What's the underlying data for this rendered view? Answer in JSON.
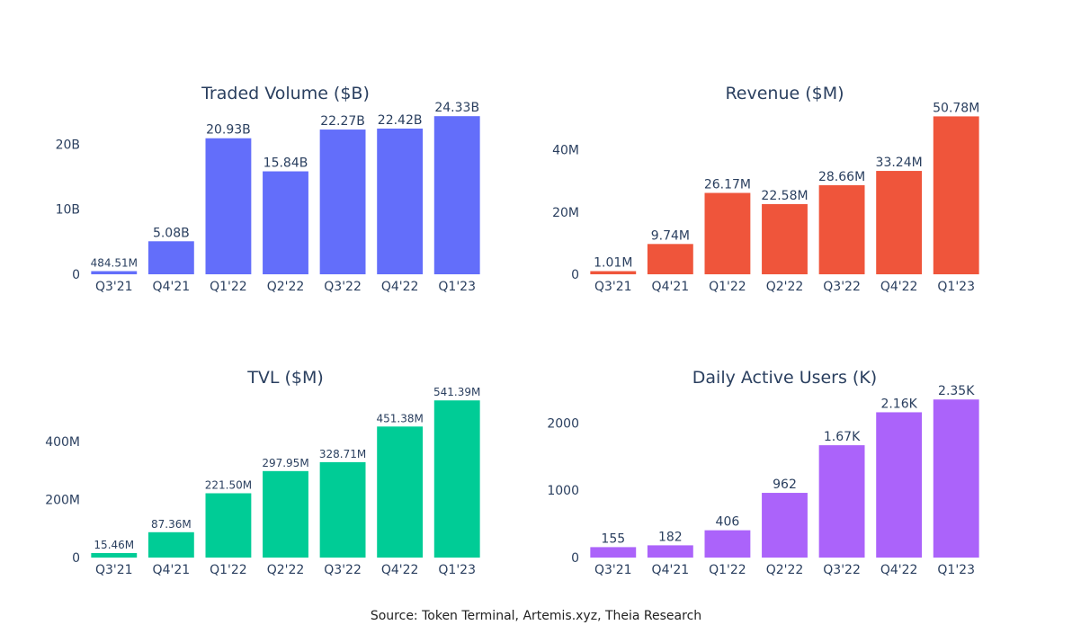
{
  "source_note": "Source: Token Terminal, Artemis.xyz, Theia Research",
  "chart_data": [
    {
      "type": "bar",
      "title": "Traded Volume ($B)",
      "categories": [
        "Q3'21",
        "Q4'21",
        "Q1'22",
        "Q2'22",
        "Q3'22",
        "Q4'22",
        "Q1'23"
      ],
      "values": [
        0.48451,
        5.08,
        20.93,
        15.84,
        22.27,
        22.42,
        24.33
      ],
      "labels": [
        "484.51M",
        "5.08B",
        "20.93B",
        "15.84B",
        "22.27B",
        "22.42B",
        "24.33B"
      ],
      "ylim": [
        0,
        25.6
      ],
      "yticks": [
        0,
        10,
        20
      ],
      "ytick_labels": [
        "0",
        "10B",
        "20B"
      ],
      "color": "#636efa",
      "xlabel": "",
      "ylabel": ""
    },
    {
      "type": "bar",
      "title": "Revenue ($M)",
      "categories": [
        "Q3'21",
        "Q4'21",
        "Q1'22",
        "Q2'22",
        "Q3'22",
        "Q4'22",
        "Q1'23"
      ],
      "values": [
        1.01,
        9.74,
        26.17,
        22.58,
        28.66,
        33.24,
        50.78
      ],
      "labels": [
        "1.01M",
        "9.74M",
        "26.17M",
        "22.58M",
        "28.66M",
        "33.24M",
        "50.78M"
      ],
      "ylim": [
        0,
        53.5
      ],
      "yticks": [
        0,
        20,
        40
      ],
      "ytick_labels": [
        "0",
        "20M",
        "40M"
      ],
      "color": "#ef553b",
      "xlabel": "",
      "ylabel": ""
    },
    {
      "type": "bar",
      "title": "TVL ($M)",
      "categories": [
        "Q3'21",
        "Q4'21",
        "Q1'22",
        "Q2'22",
        "Q3'22",
        "Q4'22",
        "Q1'23"
      ],
      "values": [
        15.46,
        87.36,
        221.5,
        297.95,
        328.71,
        451.38,
        541.39
      ],
      "labels": [
        "15.46M",
        "87.36M",
        "221.50M",
        "297.95M",
        "328.71M",
        "451.38M",
        "541.39M"
      ],
      "ylim": [
        0,
        570
      ],
      "yticks": [
        0,
        200,
        400
      ],
      "ytick_labels": [
        "0",
        "200M",
        "400M"
      ],
      "color": "#00cc96",
      "xlabel": "",
      "ylabel": ""
    },
    {
      "type": "bar",
      "title": "Daily Active Users (K)",
      "categories": [
        "Q3'21",
        "Q4'21",
        "Q1'22",
        "Q2'22",
        "Q3'22",
        "Q4'22",
        "Q1'23"
      ],
      "values": [
        155,
        182,
        406,
        962,
        1670,
        2160,
        2350
      ],
      "labels": [
        "155",
        "182",
        "406",
        "962",
        "1.67K",
        "2.16K",
        "2.35K"
      ],
      "ylim": [
        0,
        2460
      ],
      "yticks": [
        0,
        1000,
        2000
      ],
      "ytick_labels": [
        "0",
        "1000",
        "2000"
      ],
      "color": "#ab63fa",
      "xlabel": "",
      "ylabel": ""
    }
  ]
}
